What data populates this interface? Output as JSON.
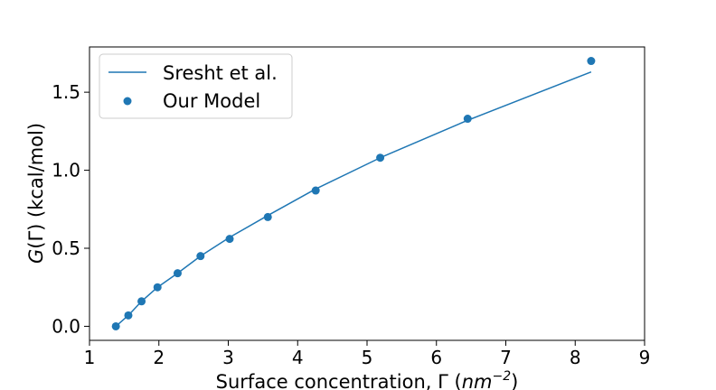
{
  "chart_data": {
    "type": "line",
    "xlabel": {
      "prefix": "Surface concentration, Γ (",
      "unit_base": "nm",
      "unit_exponent": "−2",
      "suffix": ")"
    },
    "ylabel": {
      "symbol": "G",
      "rest": "(Γ) (kcal/mol)"
    },
    "xlim": [
      1,
      9
    ],
    "ylim": [
      -0.09,
      1.79
    ],
    "xticks": [
      1,
      2,
      3,
      4,
      5,
      6,
      7,
      8,
      9
    ],
    "xtick_labels": [
      "1",
      "2",
      "3",
      "4",
      "5",
      "6",
      "7",
      "8",
      "9"
    ],
    "yticks": [
      0.0,
      0.5,
      1.0,
      1.5
    ],
    "ytick_labels": [
      "0.0",
      "0.5",
      "1.0",
      "1.5"
    ],
    "grid": false,
    "legend_position": "top-left",
    "color": "#1f77b4",
    "series": [
      {
        "name": "Sresht et al.",
        "kind": "line",
        "x": [
          1.38,
          1.56,
          1.75,
          1.98,
          2.27,
          2.6,
          3.02,
          3.57,
          4.26,
          5.19,
          6.45,
          8.23
        ],
        "y": [
          0.0,
          0.07,
          0.16,
          0.25,
          0.34,
          0.45,
          0.57,
          0.71,
          0.88,
          1.08,
          1.32,
          1.63
        ]
      },
      {
        "name": "Our Model",
        "kind": "scatter",
        "x": [
          1.38,
          1.56,
          1.75,
          1.98,
          2.27,
          2.6,
          3.02,
          3.57,
          4.26,
          5.19,
          6.45,
          8.23
        ],
        "y": [
          0.0,
          0.07,
          0.16,
          0.25,
          0.34,
          0.45,
          0.56,
          0.7,
          0.87,
          1.08,
          1.33,
          1.7
        ]
      }
    ]
  }
}
